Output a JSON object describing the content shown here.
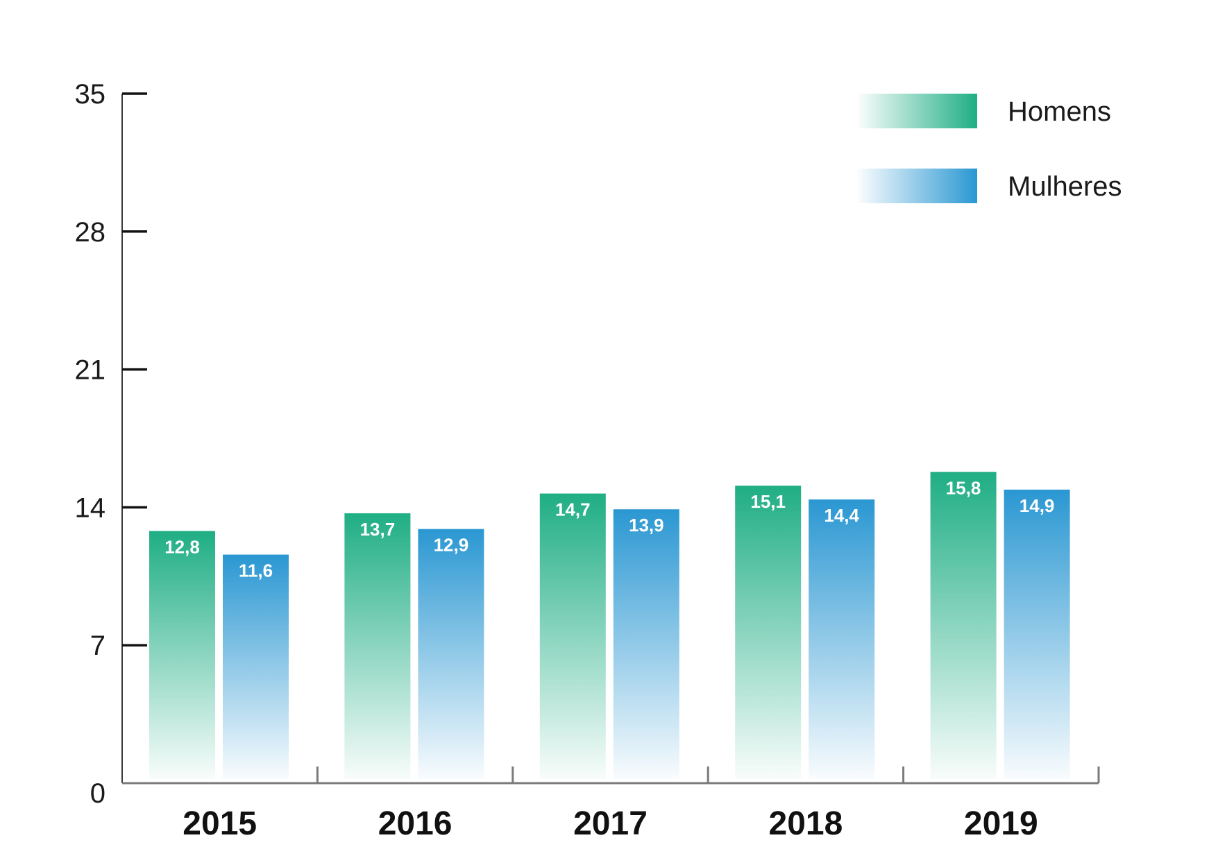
{
  "chart_data": {
    "type": "bar",
    "categories": [
      "2015",
      "2016",
      "2017",
      "2018",
      "2019"
    ],
    "series": [
      {
        "name": "Homens",
        "values": [
          12.8,
          13.7,
          14.7,
          15.1,
          15.8
        ],
        "labels": [
          "12,8",
          "13,7",
          "14,7",
          "15,1",
          "15,8"
        ],
        "color": "#1fae84"
      },
      {
        "name": "Mulheres",
        "values": [
          11.6,
          12.9,
          13.9,
          14.4,
          14.9
        ],
        "labels": [
          "11,6",
          "12,9",
          "13,9",
          "14,4",
          "14,9"
        ],
        "color": "#2a97d2"
      }
    ],
    "yticks": [
      0,
      7,
      14,
      21,
      28,
      35
    ],
    "ylim": [
      0,
      35
    ],
    "title": "",
    "xlabel": "",
    "ylabel": "",
    "grid": false,
    "legend_position": "top-right"
  }
}
